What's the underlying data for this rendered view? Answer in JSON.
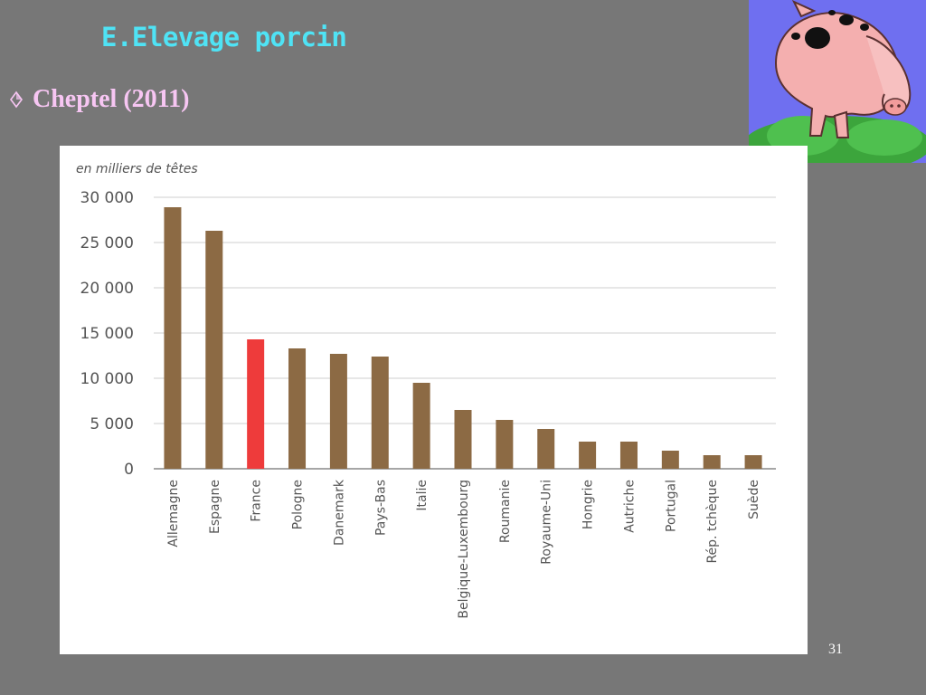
{
  "slide": {
    "title": "E.Elevage porcin",
    "bullet": "Cheptel (2011)",
    "page_number": "31"
  },
  "colors": {
    "background": "#777777",
    "title": "#4FE3F5",
    "bullet_text": "#F7C6F3",
    "bar_default": "#8C6A44",
    "bar_highlight": "#EE3B3B"
  },
  "icons": {
    "bullet": "hollow-diamond-bullet-icon",
    "illustration": "cartoon-pig-icon"
  },
  "chart_data": {
    "type": "bar",
    "unit_label": "en milliers de têtes",
    "categories": [
      "Allemagne",
      "Espagne",
      "France",
      "Pologne",
      "Danemark",
      "Pays-Bas",
      "Italie",
      "Belgique-Luxembourg",
      "Roumanie",
      "Royaume-Uni",
      "Hongrie",
      "Autriche",
      "Portugal",
      "Rép. tchèque",
      "Suède"
    ],
    "values": [
      28900,
      26300,
      14300,
      13300,
      12700,
      12400,
      9500,
      6500,
      5400,
      4400,
      3000,
      3000,
      2000,
      1500,
      1500
    ],
    "highlight": "France",
    "ylim": [
      0,
      30000
    ],
    "yticks": [
      0,
      5000,
      10000,
      15000,
      20000,
      25000,
      30000
    ],
    "ytick_labels": [
      "0",
      "5 000",
      "10 000",
      "15 000",
      "20 000",
      "25 000",
      "30 000"
    ],
    "grid": true,
    "legend": "none"
  }
}
